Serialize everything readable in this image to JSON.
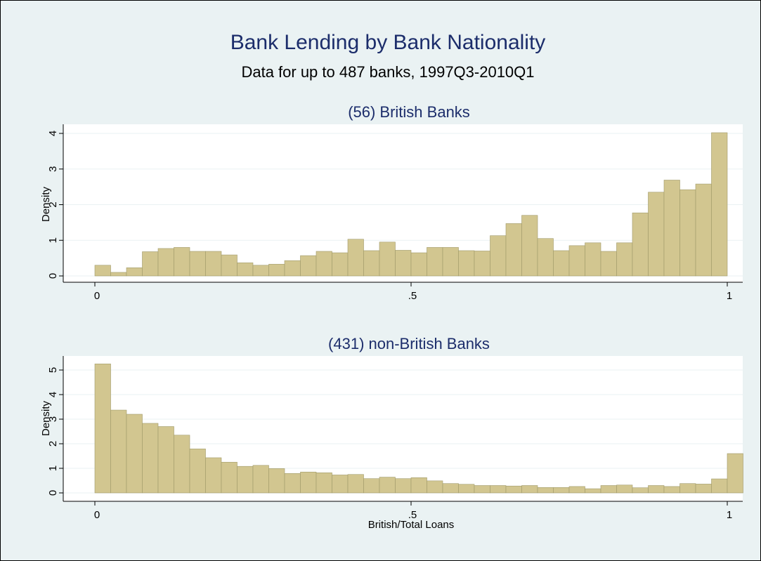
{
  "colors": {
    "background": "#eaf2f3",
    "plot_background": "#ffffff",
    "bar_fill": "#d2c690",
    "bar_outline": "#a09a6a",
    "title": "#1c2d6b"
  },
  "header": {
    "title": "Bank Lending by Bank Nationality",
    "subtitle": "Data for up to 487 banks, 1997Q3-2010Q1"
  },
  "chart_data": [
    {
      "type": "bar",
      "title": "(56) British Banks",
      "xlabel": "",
      "ylabel": "Density",
      "xlim": [
        0,
        1
      ],
      "ylim": [
        0,
        4
      ],
      "xticks": [
        {
          "value": 0,
          "label": "0"
        },
        {
          "value": 0.5,
          "label": ".5"
        },
        {
          "value": 1,
          "label": "1"
        }
      ],
      "yticks": [
        {
          "value": 0,
          "label": "0"
        },
        {
          "value": 1,
          "label": "1"
        },
        {
          "value": 2,
          "label": "2"
        },
        {
          "value": 3,
          "label": "3"
        },
        {
          "value": 4,
          "label": "4"
        }
      ],
      "grid": true,
      "bin_width": 0.025,
      "bin_start": 0,
      "values": [
        0.3,
        0.1,
        0.23,
        0.68,
        0.77,
        0.8,
        0.69,
        0.69,
        0.59,
        0.37,
        0.3,
        0.33,
        0.43,
        0.57,
        0.69,
        0.65,
        1.03,
        0.71,
        0.95,
        0.72,
        0.65,
        0.8,
        0.8,
        0.71,
        0.7,
        1.13,
        1.47,
        1.7,
        1.05,
        0.71,
        0.85,
        0.93,
        0.69,
        0.93,
        1.77,
        2.35,
        2.69,
        2.42,
        2.58,
        4.02
      ]
    },
    {
      "type": "bar",
      "title": "(431) non-British Banks",
      "xlabel": "British/Total Loans",
      "ylabel": "Density",
      "xlim": [
        0,
        1
      ],
      "ylim": [
        0,
        5
      ],
      "xticks": [
        {
          "value": 0,
          "label": "0"
        },
        {
          "value": 0.5,
          "label": ".5"
        },
        {
          "value": 1,
          "label": "1"
        }
      ],
      "yticks": [
        {
          "value": 0,
          "label": "0"
        },
        {
          "value": 1,
          "label": "1"
        },
        {
          "value": 2,
          "label": "2"
        },
        {
          "value": 3,
          "label": "3"
        },
        {
          "value": 4,
          "label": "4"
        },
        {
          "value": 5,
          "label": "5"
        }
      ],
      "grid": true,
      "bin_width": 0.025,
      "bin_start": 0,
      "values": [
        5.25,
        3.37,
        3.2,
        2.83,
        2.7,
        2.35,
        1.79,
        1.43,
        1.25,
        1.08,
        1.12,
        0.99,
        0.79,
        0.85,
        0.82,
        0.73,
        0.75,
        0.58,
        0.64,
        0.58,
        0.62,
        0.49,
        0.38,
        0.35,
        0.3,
        0.3,
        0.28,
        0.3,
        0.22,
        0.22,
        0.26,
        0.17,
        0.3,
        0.32,
        0.21,
        0.3,
        0.26,
        0.38,
        0.36,
        0.57,
        1.6
      ]
    }
  ]
}
